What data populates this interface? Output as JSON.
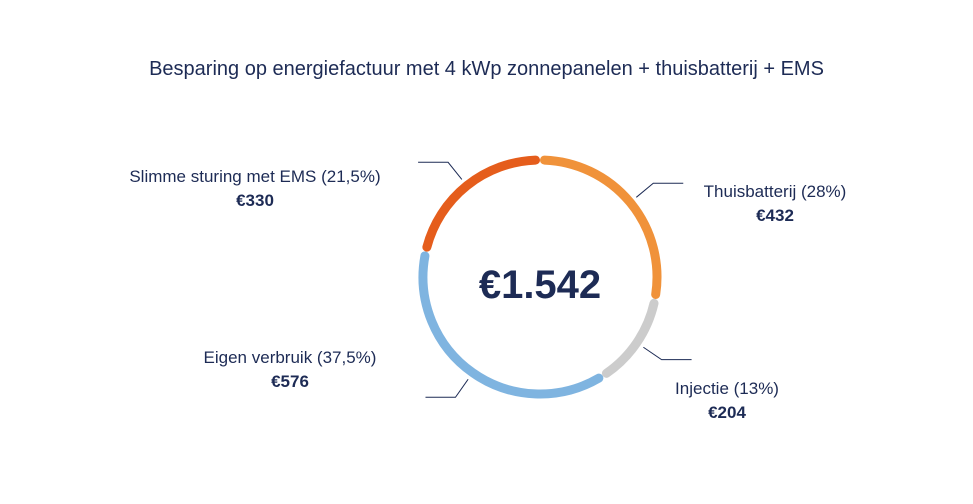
{
  "chart_data": {
    "type": "pie",
    "title": "Besparing op energiefactuur met 4 kWp zonnepanelen + thuisbatterij + EMS",
    "total_label": "€1.542",
    "segments": [
      {
        "label": "Thuisbatterij (28%)",
        "value_label": "€432",
        "value": 432,
        "percent": 28,
        "color": "#f0923a"
      },
      {
        "label": "Injectie (13%)",
        "value_label": "€204",
        "value": 204,
        "percent": 13,
        "color": "#cccccc"
      },
      {
        "label": "Eigen verbruik (37,5%)",
        "value_label": "€576",
        "value": 576,
        "percent": 37.5,
        "color": "#7fb4e0"
      },
      {
        "label": "Slimme sturing met EMS (21,5%)",
        "value_label": "€330",
        "value": 330,
        "percent": 21.5,
        "color": "#e55d1c"
      }
    ]
  }
}
